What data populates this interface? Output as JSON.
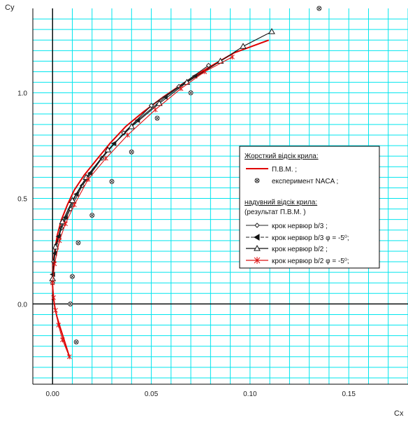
{
  "chart_data": {
    "type": "scatter",
    "xlabel": "Cx",
    "ylabel": "Cy",
    "xlim": [
      -0.01,
      0.18
    ],
    "ylim": [
      -0.38,
      1.4
    ],
    "xticks": [
      0.0,
      0.05,
      0.1,
      0.15
    ],
    "xtick_labels": [
      "0.00",
      "0.05",
      "0.10",
      "0.15"
    ],
    "yticks": [
      0.0,
      0.5,
      1.0
    ],
    "ytick_labels": [
      "0.0",
      "0.5",
      "1.0"
    ],
    "grid": true,
    "grid_color": "#00e5ee",
    "legend_position": "center-right",
    "legend": {
      "group1_title": "Жорсткий відсік крила:",
      "group2_title": "надувний відсік крила:",
      "group2_subtitle": "(результат П.В.М. )"
    },
    "series": [
      {
        "name": "П.В.М. ;",
        "style": "line",
        "color": "#e00000",
        "x": [
          0.0085,
          0.0058,
          0.0038,
          0.0022,
          0.0012,
          0.0006,
          0.0002,
          -0.0001,
          0.0,
          0.0004,
          0.0012,
          0.0025,
          0.0045,
          0.0075,
          0.011,
          0.016,
          0.022,
          0.029,
          0.037,
          0.046,
          0.056,
          0.067,
          0.079,
          0.092,
          0.1095
        ],
        "y": [
          -0.25,
          -0.17,
          -0.11,
          -0.06,
          -0.02,
          0.02,
          0.06,
          0.1,
          0.15,
          0.2,
          0.26,
          0.33,
          0.4,
          0.47,
          0.54,
          0.61,
          0.68,
          0.76,
          0.84,
          0.91,
          0.98,
          1.05,
          1.12,
          1.19,
          1.25
        ]
      },
      {
        "name": "експеримент NACA ;",
        "style": "marker",
        "marker": "circle-cross",
        "color": "#333333",
        "x": [
          0.135,
          0.07,
          0.053,
          0.04,
          0.03,
          0.02,
          0.013,
          0.01,
          0.009,
          0.012
        ],
        "y": [
          1.4,
          1.0,
          0.88,
          0.72,
          0.58,
          0.42,
          0.29,
          0.13,
          0.0,
          -0.18
        ]
      },
      {
        "name": "крок нервюр b/3 ;",
        "style": "line-marker",
        "marker": "diamond",
        "color": "#222222",
        "x": [
          0.0,
          0.0005,
          0.002,
          0.0045,
          0.009,
          0.015,
          0.025,
          0.036,
          0.05,
          0.064,
          0.079
        ],
        "y": [
          0.1,
          0.2,
          0.28,
          0.36,
          0.45,
          0.56,
          0.69,
          0.81,
          0.94,
          1.03,
          1.13
        ]
      },
      {
        "name": "крок нервюр b/3 φ = -5⁰;",
        "style": "line-marker",
        "marker": "half-triangle",
        "color": "#222222",
        "x": [
          0.0,
          0.001,
          0.003,
          0.0065,
          0.012,
          0.019,
          0.031,
          0.043,
          0.057,
          0.072
        ],
        "y": [
          0.14,
          0.24,
          0.32,
          0.41,
          0.52,
          0.62,
          0.76,
          0.87,
          0.98,
          1.08
        ]
      },
      {
        "name": "крок нервюр b/2 ;",
        "style": "line-marker",
        "marker": "triangle",
        "color": "#111111",
        "x": [
          0.0,
          0.0015,
          0.005,
          0.01,
          0.017,
          0.028,
          0.04,
          0.054,
          0.068,
          0.085,
          0.0965,
          0.111
        ],
        "y": [
          0.12,
          0.27,
          0.39,
          0.49,
          0.6,
          0.73,
          0.84,
          0.95,
          1.05,
          1.15,
          1.22,
          1.29
        ]
      },
      {
        "name": "крок нервюр b/2 φ = -5⁰;",
        "style": "line-marker",
        "marker": "star",
        "color": "#dd1111",
        "x": [
          0.0085,
          0.005,
          0.003,
          0.0015,
          0.0005,
          0.0,
          0.001,
          0.0035,
          0.0065,
          0.011,
          0.018,
          0.027,
          0.038,
          0.052,
          0.065,
          0.077,
          0.091
        ],
        "y": [
          -0.25,
          -0.17,
          -0.1,
          -0.03,
          0.03,
          0.1,
          0.19,
          0.3,
          0.38,
          0.47,
          0.59,
          0.69,
          0.8,
          0.92,
          1.02,
          1.1,
          1.17
        ]
      }
    ]
  }
}
